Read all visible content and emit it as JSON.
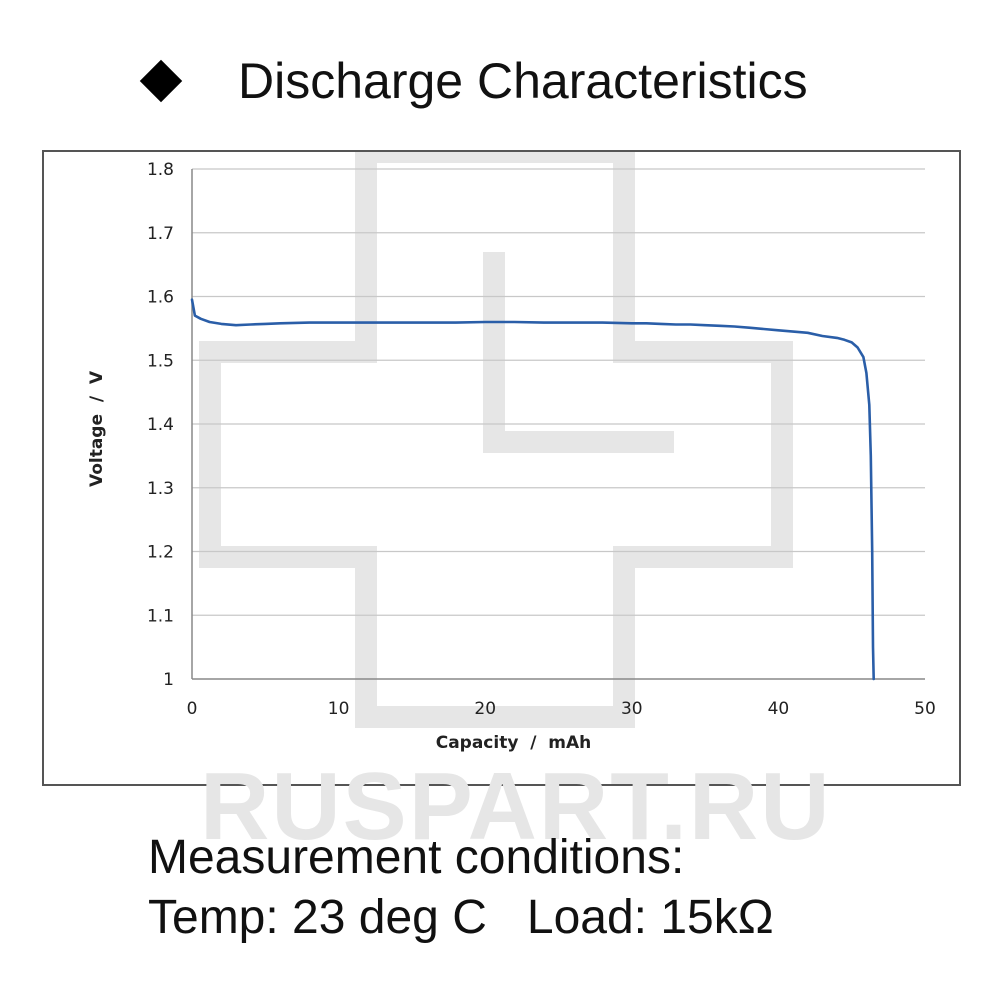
{
  "heading": {
    "title": "Discharge Characteristics",
    "bullet_icon": "diamond-bullet-icon"
  },
  "watermark": "RUSPART.RU",
  "conditions": {
    "line1": "Measurement conditions:",
    "line2": "Temp: 23 deg C   Load: 15kΩ"
  },
  "colors": {
    "line": "#2a5ea8",
    "grid": "#c8c8c8",
    "axis": "#555555",
    "watermark": "#e6e6e6"
  },
  "chart_data": {
    "type": "line",
    "title": "",
    "xlabel": "Capacity  /  mAh",
    "ylabel": "Voltage  /  V",
    "xlim": [
      0,
      50
    ],
    "ylim": [
      1.0,
      1.8
    ],
    "x_ticks": [
      "0",
      "10",
      "20",
      "30",
      "40",
      "50"
    ],
    "y_ticks": [
      "1",
      "1.1",
      "1.2",
      "1.3",
      "1.4",
      "1.5",
      "1.6",
      "1.7",
      "1.8"
    ],
    "grid": true,
    "legend": "none",
    "series": [
      {
        "x": [
          0,
          0.2,
          0.6,
          1.2,
          2,
          3,
          4,
          5,
          6,
          8,
          10,
          12,
          14,
          16,
          18,
          20,
          22,
          24,
          26,
          28,
          30,
          31,
          32,
          33,
          34,
          35,
          36,
          37,
          38,
          39,
          40,
          41,
          42,
          43,
          44,
          44.5,
          45,
          45.4,
          45.8,
          46.0,
          46.2,
          46.3,
          46.4,
          46.45,
          46.5
        ],
        "y": [
          1.595,
          1.57,
          1.565,
          1.56,
          1.557,
          1.555,
          1.556,
          1.557,
          1.558,
          1.559,
          1.559,
          1.559,
          1.559,
          1.559,
          1.559,
          1.56,
          1.56,
          1.559,
          1.559,
          1.559,
          1.558,
          1.558,
          1.557,
          1.556,
          1.556,
          1.555,
          1.554,
          1.553,
          1.551,
          1.549,
          1.547,
          1.545,
          1.543,
          1.538,
          1.535,
          1.532,
          1.528,
          1.52,
          1.505,
          1.48,
          1.43,
          1.35,
          1.2,
          1.05,
          1.0
        ]
      }
    ]
  }
}
